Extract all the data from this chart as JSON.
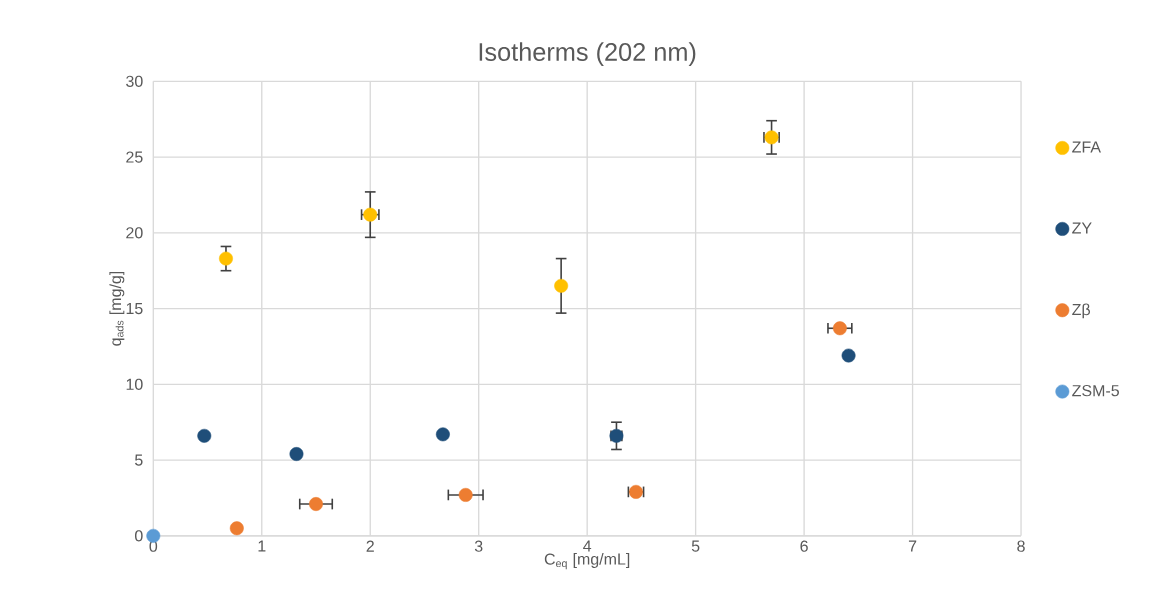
{
  "chart_data": {
    "type": "scatter",
    "title": "Isotherms (202 nm)",
    "xlabel": "C$_{eq}$ [mg/mL]",
    "ylabel": "q$_{ads}$ [mg/g]",
    "xlim": [
      0,
      8
    ],
    "ylim": [
      0,
      30
    ],
    "xticks": [
      0,
      1,
      2,
      3,
      4,
      5,
      6,
      7,
      8
    ],
    "yticks": [
      0,
      5,
      10,
      15,
      20,
      25,
      30
    ],
    "grid": true,
    "legend": "right",
    "marker": "circle",
    "series": [
      {
        "name": "ZFA",
        "color": "#ffc000",
        "x": [
          0.67,
          2.0,
          3.76,
          5.7
        ],
        "values": [
          18.3,
          21.2,
          16.5,
          26.3
        ],
        "errors": [
          0.8,
          1.5,
          1.8,
          1.1
        ],
        "xerrors": [
          null,
          0.08,
          null,
          0.07
        ]
      },
      {
        "name": "ZY",
        "color": "#1f4e79",
        "x": [
          0.47,
          1.32,
          2.67,
          4.27,
          6.41
        ],
        "values": [
          6.6,
          5.4,
          6.7,
          6.6,
          11.9
        ],
        "errors": [
          null,
          null,
          null,
          0.9,
          null
        ],
        "xerrors": [
          null,
          null,
          null,
          0.05,
          null
        ]
      },
      {
        "name": "Zβ",
        "color": "#ed7d31",
        "x": [
          0.77,
          1.5,
          2.88,
          4.45,
          6.33
        ],
        "values": [
          0.5,
          2.1,
          2.7,
          2.9,
          13.7
        ],
        "xerrors": [
          null,
          0.15,
          0.16,
          0.07,
          0.11
        ]
      },
      {
        "name": "ZSM-5",
        "color": "#5b9bd5",
        "x": [
          0
        ],
        "values": [
          0
        ]
      }
    ]
  }
}
